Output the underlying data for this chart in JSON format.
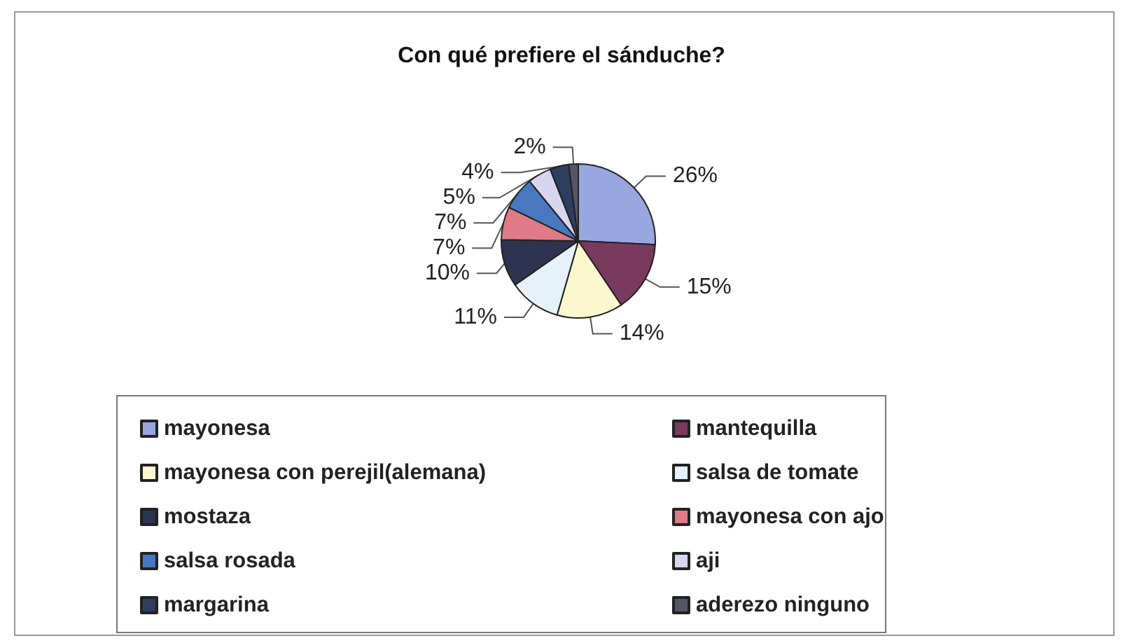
{
  "chart_data": {
    "type": "pie",
    "title": "Con qué prefiere el sánduche?",
    "categories": [
      "mayonesa",
      "mantequilla",
      "mayonesa con perejil(alemana)",
      "salsa de tomate",
      "mostaza",
      "mayonesa con ajo",
      "salsa rosada",
      "aji",
      "margarina",
      "aderezo ninguno"
    ],
    "values": [
      26,
      15,
      14,
      11,
      10,
      7,
      7,
      5,
      4,
      2
    ],
    "value_labels": [
      "26%",
      "15%",
      "14%",
      "11%",
      "10%",
      "7%",
      "7%",
      "5%",
      "4%",
      "2%"
    ],
    "colors": [
      "#9aa6e0",
      "#7a3a5e",
      "#fbf8d0",
      "#e6f2fa",
      "#2e3350",
      "#e07a88",
      "#4a78c0",
      "#d6d6f0",
      "#2e3e5e",
      "#555566"
    ],
    "legend": "bottom"
  }
}
